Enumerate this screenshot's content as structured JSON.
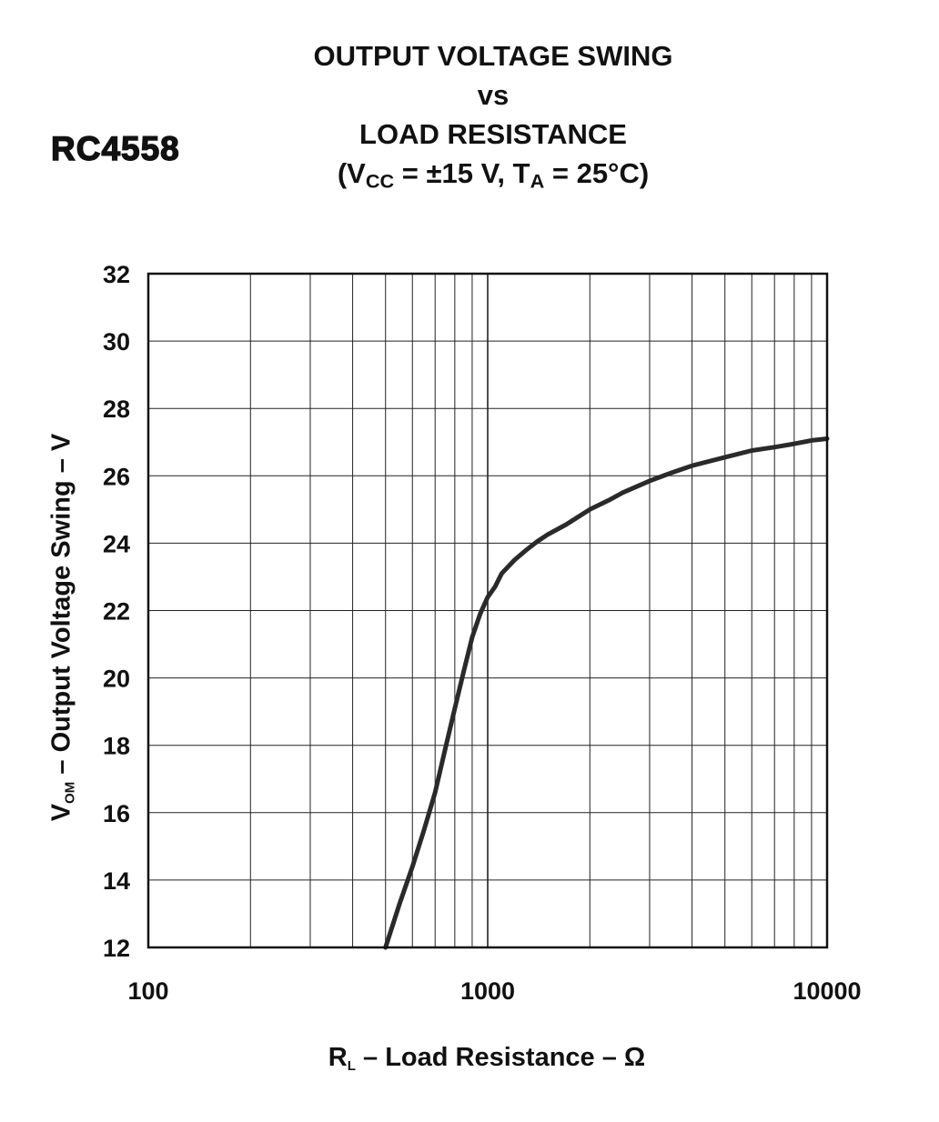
{
  "device": "RC4558",
  "title": {
    "line1": "OUTPUT VOLTAGE SWING",
    "line2": "vs",
    "line3": "LOAD RESISTANCE",
    "cond_open": "(V",
    "cond_sub1": "CC",
    "cond_mid": " = ±15 V, T",
    "cond_sub2": "A",
    "cond_close": " = 25°C)"
  },
  "axes": {
    "y_main": "V",
    "y_sub": "OM",
    "y_rest": " – Output Voltage Swing – V",
    "x_main": "R",
    "x_sub": "L",
    "x_rest": " – Load Resistance – Ω"
  },
  "chart_data": {
    "type": "line",
    "title": "OUTPUT VOLTAGE SWING vs LOAD RESISTANCE (VCC = ±15 V, TA = 25°C)",
    "xlabel": "RL – Load Resistance – Ω",
    "ylabel": "VOM – Output Voltage Swing – V",
    "xscale": "log",
    "xlim": [
      100,
      10000
    ],
    "ylim": [
      12,
      32
    ],
    "xticks": [
      "100",
      "1000",
      "10000"
    ],
    "yticks": [
      "12",
      "14",
      "16",
      "18",
      "20",
      "22",
      "24",
      "26",
      "28",
      "30",
      "32"
    ],
    "grid": true,
    "series": [
      {
        "x": [
          500,
          550,
          600,
          650,
          700,
          750,
          800,
          850,
          900,
          950,
          1000,
          1050,
          1100,
          1200,
          1300,
          1400,
          1500,
          1700,
          2000,
          2300,
          2500,
          3000,
          3500,
          4000,
          5000,
          6000,
          7000,
          8000,
          9000,
          10000
        ],
        "y": [
          12.0,
          13.3,
          14.4,
          15.5,
          16.6,
          17.9,
          19.1,
          20.2,
          21.2,
          21.9,
          22.4,
          22.7,
          23.1,
          23.5,
          23.8,
          24.05,
          24.25,
          24.55,
          25.0,
          25.3,
          25.5,
          25.85,
          26.1,
          26.3,
          26.55,
          26.75,
          26.85,
          26.95,
          27.05,
          27.1
        ]
      }
    ]
  }
}
